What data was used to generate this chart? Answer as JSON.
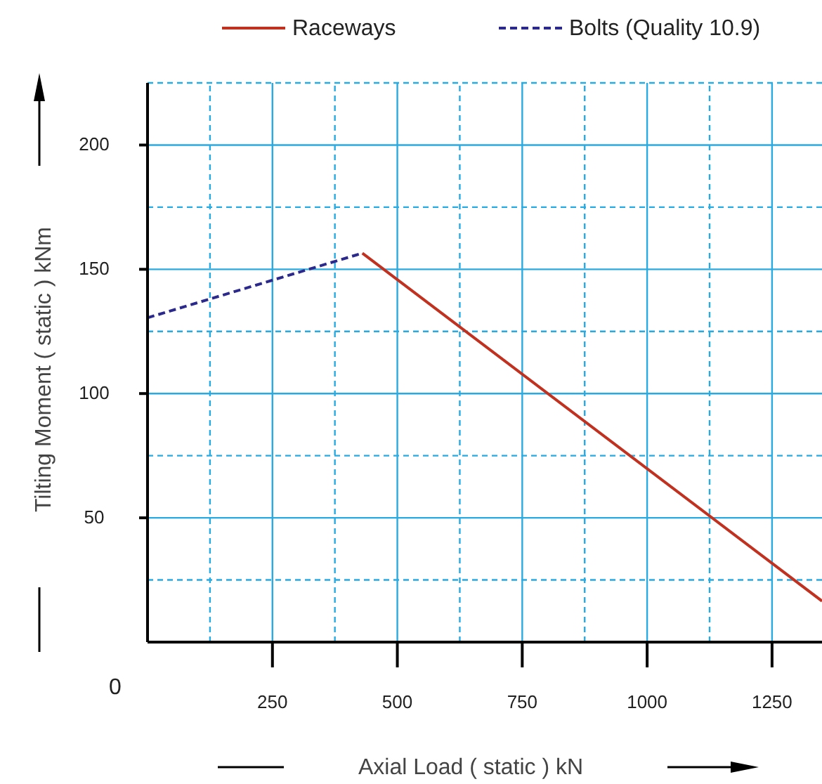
{
  "chart_data": {
    "type": "line",
    "xlabel": "Axial Load  ( static ) kN",
    "ylabel": "Tilting Moment ( static )  kNm",
    "xlim": [
      0,
      1350
    ],
    "ylim": [
      0,
      225
    ],
    "annotations": [
      "0"
    ],
    "xticks": [
      {
        "value": 125,
        "label": null
      },
      250,
      {
        "value": 375,
        "label": null
      },
      500,
      {
        "value": 625,
        "label": null
      },
      750,
      {
        "value": 875,
        "label": null
      },
      1000,
      {
        "value": 1125,
        "label": null
      },
      1250
    ],
    "yticks": [
      {
        "value": 25,
        "label": null
      },
      50,
      {
        "value": 75,
        "label": null
      },
      100,
      {
        "value": 125,
        "label": null
      },
      150,
      {
        "value": 175,
        "label": null
      },
      200,
      {
        "value": 225,
        "label": null
      }
    ],
    "grid": true,
    "legend": "top",
    "series": [
      {
        "name": "Raceways",
        "color": "#c0311f",
        "line_style": "solid",
        "x": [
          430,
          1350
        ],
        "values": [
          156.5,
          16.5
        ]
      },
      {
        "name": "Bolts (Quality 10.9)",
        "color": "#2b2a8c",
        "line_style": "dashed",
        "x": [
          0,
          430
        ],
        "values": [
          130.5,
          156.5
        ]
      }
    ]
  }
}
